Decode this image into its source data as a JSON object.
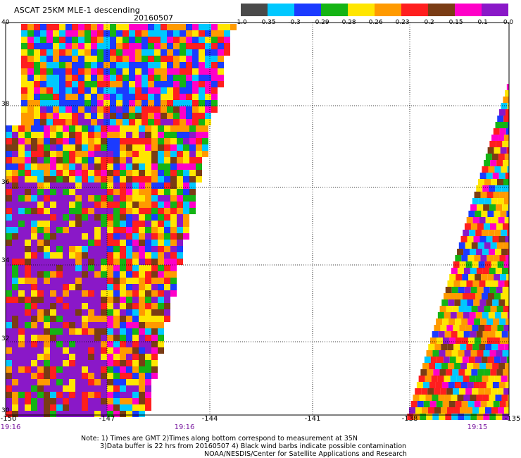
{
  "header": {
    "title": "ASCAT 25KM MLE-1 descending",
    "date": "20160507"
  },
  "colorbar": {
    "colors": [
      "#4a4a4a",
      "#00c8ff",
      "#1b3bff",
      "#14b414",
      "#ffe600",
      "#ff9a00",
      "#ff1e1e",
      "#7a3c14",
      "#ff00c8",
      "#8a18c8"
    ],
    "ticks": [
      "-1.0",
      "-0.35",
      "-0.3",
      "-0.29",
      "-0.28",
      "-0.26",
      "-0.23",
      "-0.2",
      "-0.15",
      "-0.1",
      "0.0"
    ]
  },
  "map": {
    "lat_labels": [
      "40",
      "38",
      "36",
      "34",
      "32",
      "30"
    ],
    "lon_labels": [
      "-150",
      "-147",
      "-144",
      "-141",
      "-138",
      "-135"
    ],
    "times": [
      "19:16",
      "19:16",
      "19:15"
    ],
    "lat_range": [
      30,
      40
    ],
    "lon_range": [
      -150,
      -135
    ],
    "grid": "dotted"
  },
  "notes": {
    "line1": "Note: 1) Times are GMT 2)Times along bottom correspond to measurement at 35N",
    "line2": "3)Data buffer is 22 hrs from 20160507 4) Black wind barbs indicate possible contamination",
    "line3": "NOAA/NESDIS/Center for Satellite Applications and Research"
  }
}
